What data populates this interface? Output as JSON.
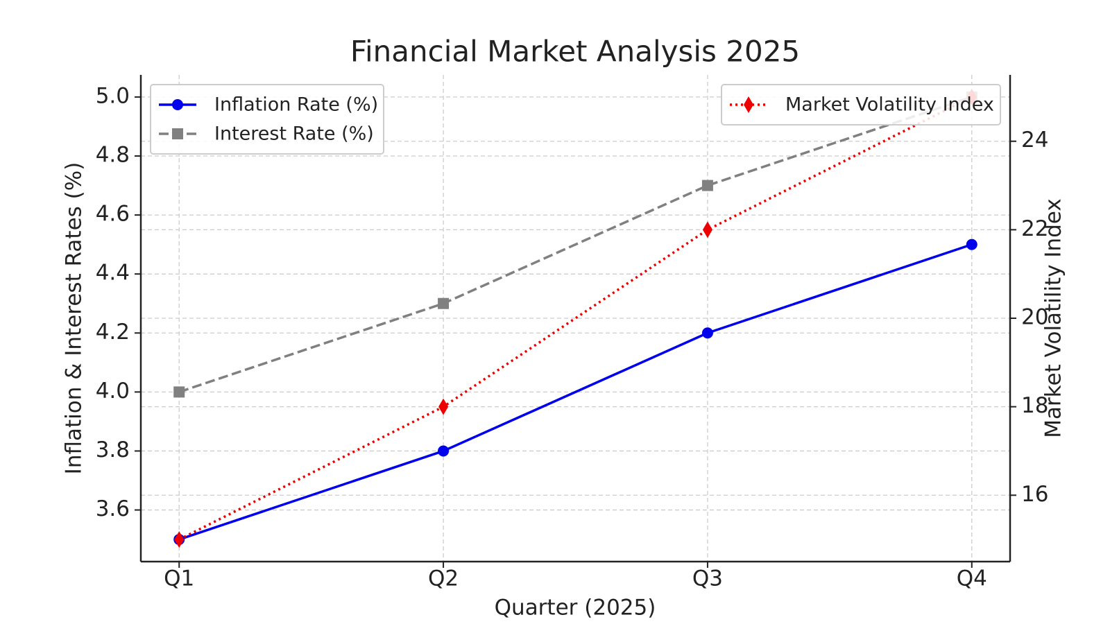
{
  "chart_data": {
    "type": "line",
    "title": "Financial Market Analysis 2025",
    "x_label": "Quarter (2025)",
    "y_label": "Inflation & Interest Rates (%)",
    "y2_label": "Market Volatility Index",
    "categories": [
      "Q1",
      "Q2",
      "Q3",
      "Q4"
    ],
    "series": [
      {
        "name": "Inflation Rate (%)",
        "color": "#0000ee",
        "linestyle": "solid",
        "marker": "circle",
        "values": [
          3.5,
          3.8,
          4.2,
          4.5
        ]
      },
      {
        "name": "Interest Rate (%)",
        "color": "#808080",
        "linestyle": "dashed",
        "marker": "square",
        "values": [
          4.0,
          4.3,
          4.7,
          5.0
        ]
      },
      {
        "name": "Market Volatility Index",
        "color": "#ee0000",
        "linestyle": "dotted",
        "marker": "diamond",
        "axis": "y2",
        "values": [
          15,
          18,
          22,
          25
        ]
      }
    ],
    "ylim": [
      3.425,
      5.075
    ],
    "yticks": [
      3.6,
      3.8,
      {
        "value": 4.0,
        "label": "4.0"
      },
      4.2,
      4.4,
      4.6,
      4.8,
      {
        "value": 5.0,
        "label": "5.0"
      }
    ],
    "y2lim": [
      14.5,
      25.5
    ],
    "y2ticks": [
      16,
      18,
      20,
      22,
      24
    ],
    "grid": true,
    "legend": "upper left",
    "y2legend": "upper right"
  }
}
